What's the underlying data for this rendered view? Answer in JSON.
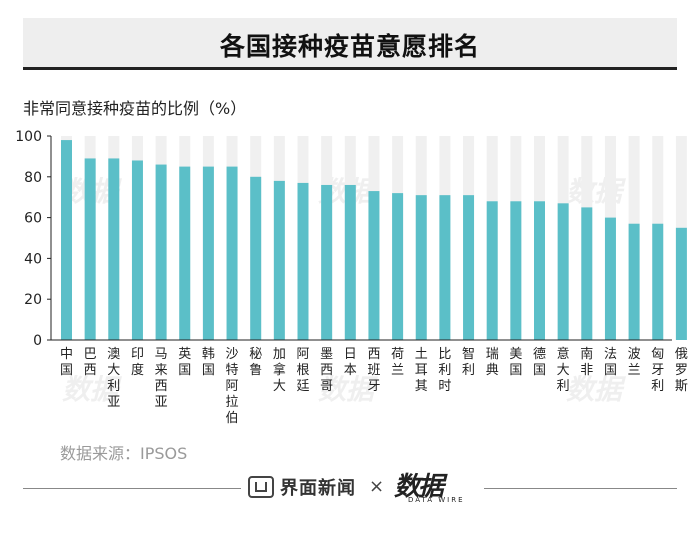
{
  "header": {
    "title": "各国接种疫苗意愿排名"
  },
  "subtitle": "非常同意接种疫苗的比例（%）",
  "source": "数据来源：IPSOS",
  "footer": {
    "brand_left": "界面新闻",
    "separator": "×",
    "brand_right": "数据",
    "brand_right_en": "DATA WIRE"
  },
  "watermark": "数据",
  "colors": {
    "bar": "#5bbfc8",
    "track": "#f0f0f0",
    "axis": "#222222"
  },
  "chart_data": {
    "type": "bar",
    "ylim": [
      0,
      100
    ],
    "yticks": [
      0,
      20,
      40,
      60,
      80,
      100
    ],
    "grid": false,
    "categories": [
      "中国",
      "巴西",
      "澳大利亚",
      "印度",
      "马来西亚",
      "英国",
      "韩国",
      "沙特阿拉伯",
      "秘鲁",
      "加拿大",
      "阿根廷",
      "墨西哥",
      "日本",
      "西班牙",
      "荷兰",
      "土耳其",
      "比利时",
      "智利",
      "瑞典",
      "美国",
      "德国",
      "意大利",
      "南非",
      "法国",
      "波兰",
      "匈牙利",
      "俄罗斯"
    ],
    "values": [
      98,
      89,
      89,
      88,
      86,
      85,
      85,
      85,
      80,
      78,
      77,
      76,
      76,
      73,
      72,
      71,
      71,
      71,
      68,
      68,
      68,
      67,
      65,
      60,
      57,
      57,
      55
    ]
  }
}
